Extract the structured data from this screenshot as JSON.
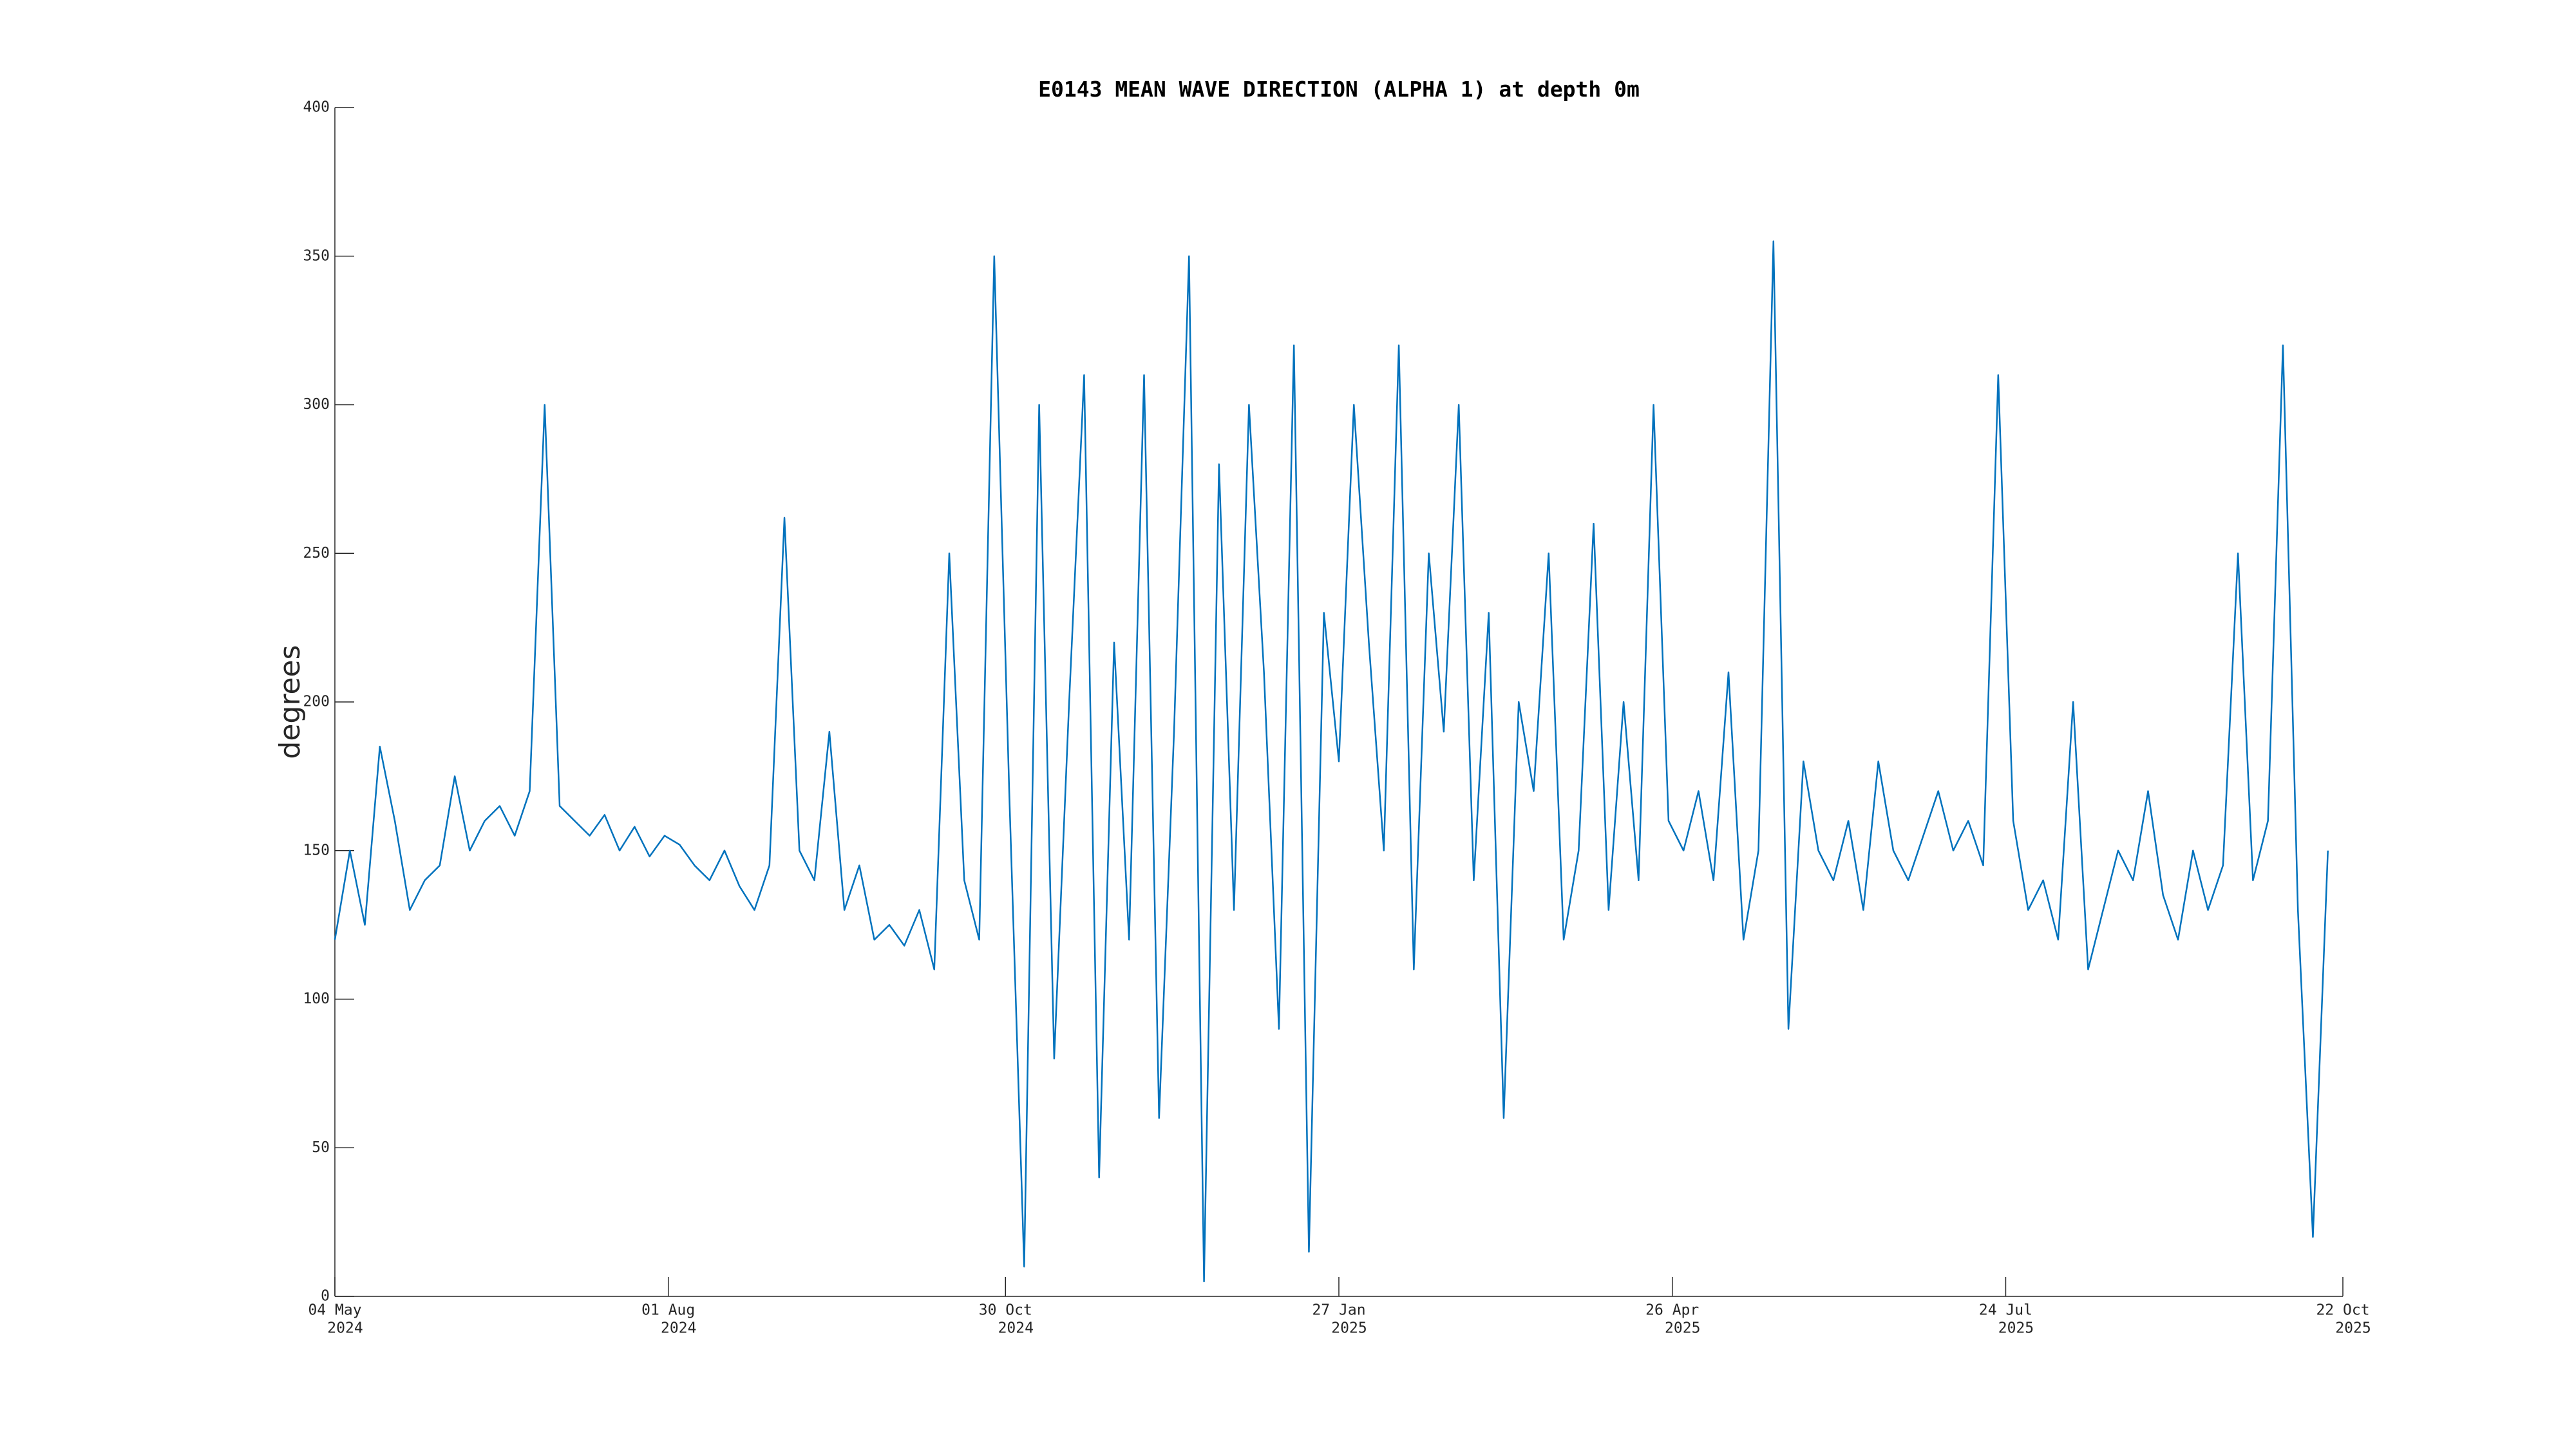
{
  "chart_data": {
    "type": "line",
    "title": "E0143 MEAN WAVE DIRECTION (ALPHA 1) at depth 0m",
    "ylabel": "degrees",
    "x": [
      "2024-05-04",
      "2024-05-08",
      "2024-05-12",
      "2024-05-16",
      "2024-05-20",
      "2024-05-24",
      "2024-05-28",
      "2024-06-01",
      "2024-06-05",
      "2024-06-09",
      "2024-06-13",
      "2024-06-17",
      "2024-06-21",
      "2024-06-25",
      "2024-06-29",
      "2024-07-03",
      "2024-07-07",
      "2024-07-11",
      "2024-07-15",
      "2024-07-19",
      "2024-07-23",
      "2024-07-27",
      "2024-07-31",
      "2024-08-04",
      "2024-08-08",
      "2024-08-12",
      "2024-08-16",
      "2024-08-20",
      "2024-08-24",
      "2024-08-28",
      "2024-09-01",
      "2024-09-05",
      "2024-09-09",
      "2024-09-13",
      "2024-09-17",
      "2024-09-21",
      "2024-09-25",
      "2024-09-29",
      "2024-10-03",
      "2024-10-07",
      "2024-10-11",
      "2024-10-15",
      "2024-10-19",
      "2024-10-23",
      "2024-10-27",
      "2024-10-31",
      "2024-11-04",
      "2024-11-08",
      "2024-11-12",
      "2024-11-16",
      "2024-11-20",
      "2024-11-24",
      "2024-11-28",
      "2024-12-02",
      "2024-12-06",
      "2024-12-10",
      "2024-12-14",
      "2024-12-18",
      "2024-12-22",
      "2024-12-26",
      "2024-12-30",
      "2025-01-03",
      "2025-01-07",
      "2025-01-11",
      "2025-01-15",
      "2025-01-19",
      "2025-01-23",
      "2025-01-27",
      "2025-01-31",
      "2025-02-04",
      "2025-02-08",
      "2025-02-12",
      "2025-02-16",
      "2025-02-20",
      "2025-02-24",
      "2025-02-28",
      "2025-03-04",
      "2025-03-08",
      "2025-03-12",
      "2025-03-16",
      "2025-03-20",
      "2025-03-24",
      "2025-03-28",
      "2025-04-01",
      "2025-04-05",
      "2025-04-09",
      "2025-04-13",
      "2025-04-17",
      "2025-04-21",
      "2025-04-25",
      "2025-04-29",
      "2025-05-03",
      "2025-05-07",
      "2025-05-11",
      "2025-05-15",
      "2025-05-19",
      "2025-05-23",
      "2025-05-27",
      "2025-05-31",
      "2025-06-04",
      "2025-06-08",
      "2025-06-12",
      "2025-06-16",
      "2025-06-20",
      "2025-06-24",
      "2025-06-28",
      "2025-07-02",
      "2025-07-06",
      "2025-07-10",
      "2025-07-14",
      "2025-07-18",
      "2025-07-22",
      "2025-07-26",
      "2025-07-30",
      "2025-08-03",
      "2025-08-07",
      "2025-08-11",
      "2025-08-15",
      "2025-08-19",
      "2025-08-23",
      "2025-08-27",
      "2025-08-31",
      "2025-09-04",
      "2025-09-08",
      "2025-09-12",
      "2025-09-16",
      "2025-09-20",
      "2025-09-24",
      "2025-09-28",
      "2025-10-02",
      "2025-10-06",
      "2025-10-10",
      "2025-10-14",
      "2025-10-18"
    ],
    "series": [
      {
        "color": "#0072bd",
        "values": [
          120,
          150,
          125,
          185,
          160,
          130,
          140,
          145,
          175,
          150,
          160,
          165,
          155,
          170,
          300,
          165,
          160,
          155,
          162,
          150,
          158,
          148,
          155,
          152,
          145,
          140,
          150,
          138,
          130,
          145,
          262,
          150,
          140,
          190,
          130,
          145,
          120,
          125,
          118,
          130,
          110,
          250,
          140,
          120,
          350,
          170,
          10,
          300,
          80,
          200,
          310,
          40,
          220,
          120,
          310,
          60,
          190,
          350,
          5,
          280,
          130,
          300,
          210,
          90,
          320,
          15,
          230,
          180,
          300,
          220,
          150,
          320,
          110,
          250,
          190,
          300,
          140,
          230,
          60,
          200,
          170,
          250,
          120,
          150,
          260,
          130,
          200,
          140,
          300,
          160,
          150,
          170,
          140,
          210,
          120,
          150,
          355,
          90,
          180,
          150,
          140,
          160,
          130,
          180,
          150,
          140,
          155,
          170,
          150,
          160,
          145,
          310,
          160,
          130,
          140,
          120,
          200,
          110,
          130,
          150,
          140,
          170,
          135,
          120,
          150,
          130,
          145,
          250,
          140,
          160,
          320,
          130,
          20,
          150
        ]
      }
    ],
    "xlim": [
      "2024-05-04",
      "2025-10-22"
    ],
    "xticks": [
      {
        "value": "2024-05-04",
        "label": [
          "04 May",
          "2024"
        ]
      },
      {
        "value": "2024-08-01",
        "label": [
          "01 Aug",
          "2024"
        ]
      },
      {
        "value": "2024-10-30",
        "label": [
          "30 Oct",
          "2024"
        ]
      },
      {
        "value": "2025-01-27",
        "label": [
          "27 Jan",
          "2025"
        ]
      },
      {
        "value": "2025-04-26",
        "label": [
          "26 Apr",
          "2025"
        ]
      },
      {
        "value": "2025-07-24",
        "label": [
          "24 Jul",
          "2025"
        ]
      },
      {
        "value": "2025-10-22",
        "label": [
          "22 Oct",
          "2025"
        ]
      }
    ],
    "ylim": [
      0,
      400
    ],
    "yticks": [
      0,
      50,
      100,
      150,
      200,
      250,
      300,
      350,
      400
    ]
  }
}
